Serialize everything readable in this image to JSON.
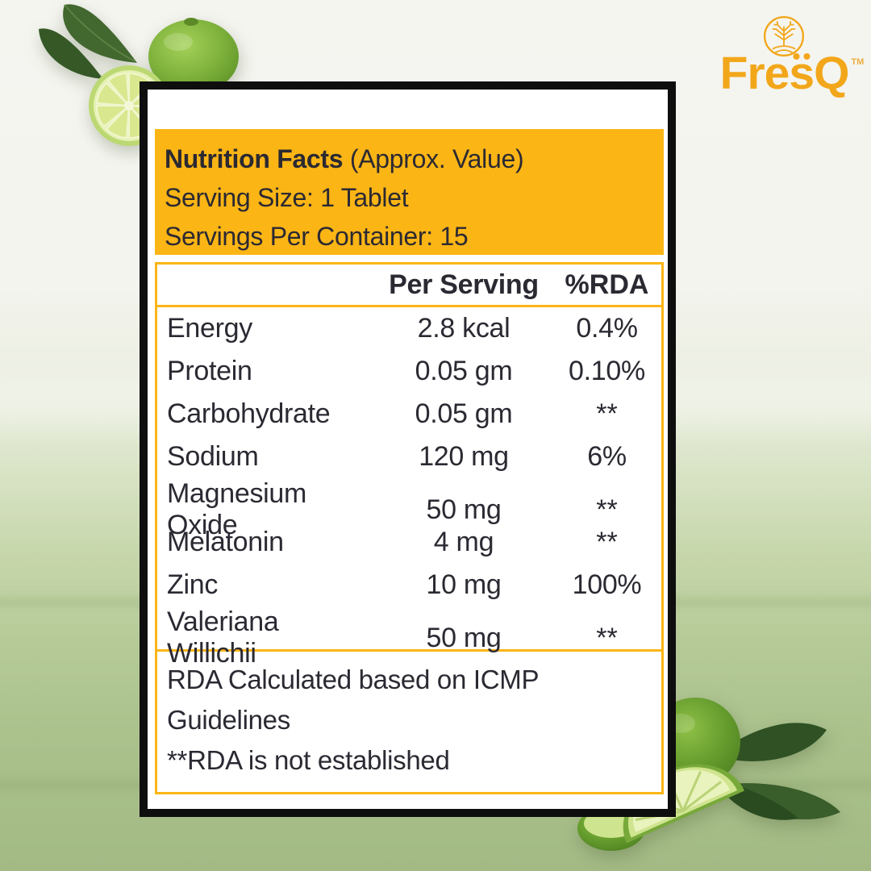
{
  "logo": {
    "brand_pre": "Fre",
    "brand_s": "s",
    "brand_post": "Q",
    "trademark": "TM",
    "icon": "tree-in-circle-icon",
    "color": "#F2A71B"
  },
  "label": {
    "header": {
      "title": "Nutrition Facts",
      "title_note": " (Approx. Value)",
      "serving_size": "Serving Size: 1 Tablet",
      "servings_per_container": "Servings Per Container: 15",
      "bg_color": "#FBB515"
    },
    "columns": {
      "per_serving": "Per Serving",
      "rda": "%RDA"
    },
    "rows": [
      {
        "name": "Energy",
        "per_serving": "2.8 kcal",
        "rda": "0.4%"
      },
      {
        "name": "Protein",
        "per_serving": "0.05 gm",
        "rda": "0.10%"
      },
      {
        "name": "Carbohydrate",
        "per_serving": "0.05 gm",
        "rda": "**"
      },
      {
        "name": "Sodium",
        "per_serving": "120 mg",
        "rda": "6%"
      },
      {
        "name": "Magnesium Oxide",
        "per_serving": "50 mg",
        "rda": "**"
      },
      {
        "name": "Melatonin",
        "per_serving": "4 mg",
        "rda": "**"
      },
      {
        "name": "Zinc",
        "per_serving": "10 mg",
        "rda": "100%"
      },
      {
        "name": "Valeriana Willichii",
        "per_serving": "50 mg",
        "rda": "**"
      }
    ],
    "footnotes": [
      "RDA Calculated based on ICMP Guidelines",
      "**RDA is not established"
    ],
    "border_color": "#0F0E0F",
    "text_color": "#2B2932"
  },
  "background": {
    "top_color": "#F5F5F0",
    "bottom_color": "#A3BA85",
    "decorations": [
      "lime-cluster-top-left",
      "lime-cluster-bottom-right"
    ]
  }
}
